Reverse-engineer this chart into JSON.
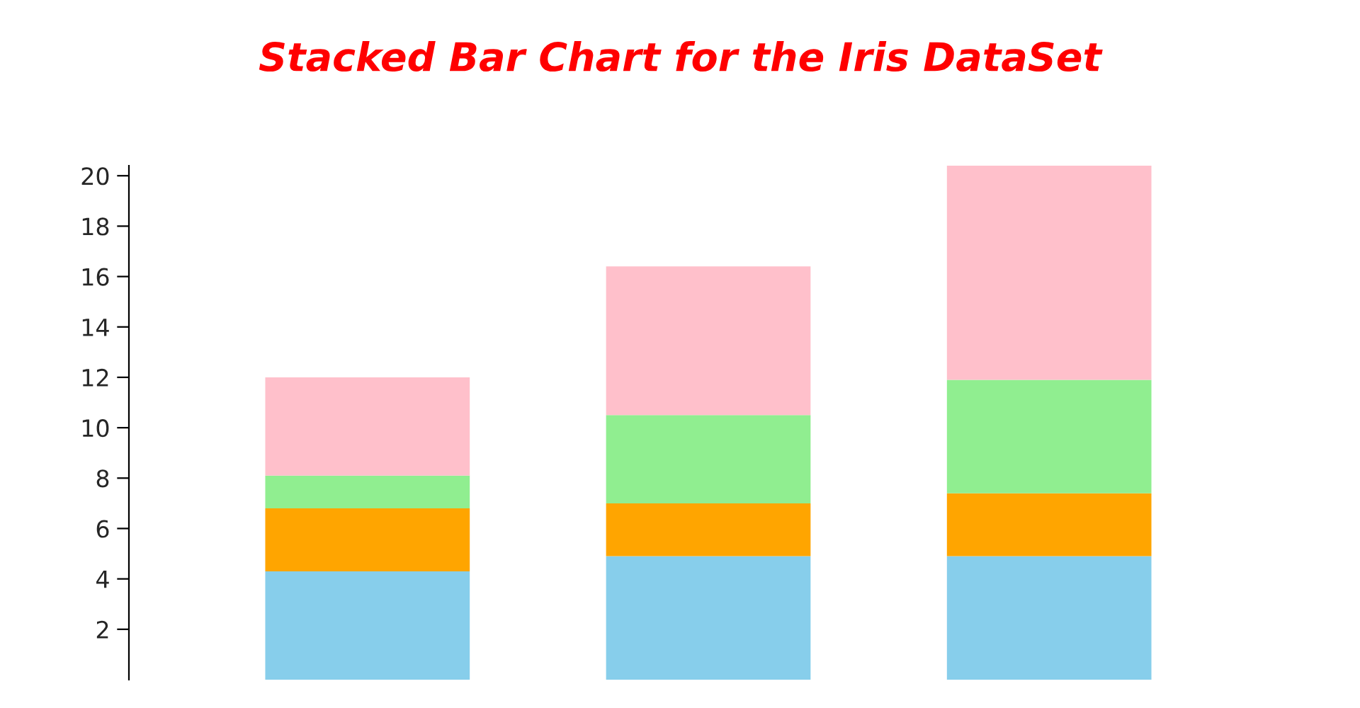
{
  "chart_data": {
    "type": "bar",
    "title": "Stacked Bar Chart for the Iris DataSet",
    "stacked": true,
    "categories": [
      null,
      null,
      null
    ],
    "series": [
      {
        "color": "#87ceeb",
        "values": [
          4.3,
          4.9,
          4.9
        ]
      },
      {
        "color": "#ffa500",
        "values": [
          2.5,
          2.1,
          2.5
        ]
      },
      {
        "color": "#90ee90",
        "values": [
          1.3,
          3.5,
          4.5
        ]
      },
      {
        "color": "#ffc0cb",
        "values": [
          3.9,
          5.9,
          8.5
        ]
      }
    ],
    "ylim": [
      0,
      20.4
    ],
    "yticks": [
      2,
      4,
      6,
      8,
      10,
      12,
      14,
      16,
      18,
      20
    ],
    "grid": false,
    "legend": false
  }
}
